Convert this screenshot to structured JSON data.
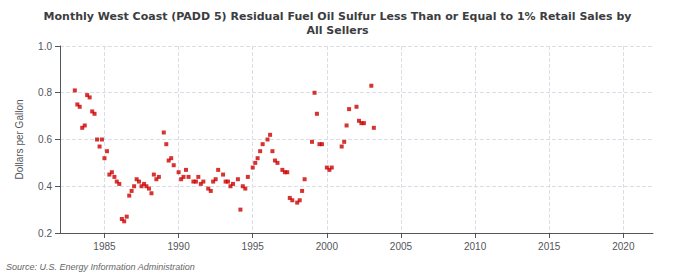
{
  "chart_data": {
    "type": "scatter",
    "title": "Monthly West Coast (PADD 5) Residual Fuel Oil Sulfur Less Than or Equal to 1% Retail Sales by\nAll Sellers",
    "ylabel": "Dollars per Gallon",
    "annotation": "Source: U.S. Energy Information Administration",
    "color": "#cc0000",
    "marker": "square",
    "grid": true,
    "xlim": [
      1982,
      2022
    ],
    "ylim": [
      0.2,
      1.0
    ],
    "xticks": [
      1985,
      1990,
      1995,
      2000,
      2005,
      2010,
      2015,
      2020
    ],
    "yticks": [
      0.2,
      0.4,
      0.6,
      0.8,
      {
        "value": 1.0,
        "label": "1.0"
      }
    ],
    "x": [
      1983.0,
      1983.17,
      1983.33,
      1983.5,
      1983.67,
      1983.83,
      1984.0,
      1984.17,
      1984.33,
      1984.5,
      1984.67,
      1984.83,
      1985.0,
      1985.17,
      1985.33,
      1985.5,
      1985.67,
      1985.83,
      1986.0,
      1986.17,
      1986.33,
      1986.5,
      1986.67,
      1986.83,
      1987.0,
      1987.17,
      1987.33,
      1987.5,
      1987.67,
      1987.83,
      1988.0,
      1988.17,
      1988.33,
      1988.5,
      1988.67,
      1989.0,
      1989.17,
      1989.33,
      1989.5,
      1989.67,
      1990.0,
      1990.17,
      1990.33,
      1990.5,
      1990.67,
      1991.0,
      1991.17,
      1991.33,
      1991.5,
      1991.67,
      1992.0,
      1992.17,
      1992.33,
      1992.5,
      1992.67,
      1993.0,
      1993.17,
      1993.33,
      1993.5,
      1993.67,
      1994.0,
      1994.17,
      1994.33,
      1994.5,
      1994.67,
      1995.0,
      1995.17,
      1995.33,
      1995.5,
      1995.67,
      1996.0,
      1996.17,
      1996.33,
      1996.5,
      1996.67,
      1997.0,
      1997.17,
      1997.33,
      1997.5,
      1997.67,
      1998.0,
      1998.17,
      1998.33,
      1998.5,
      1999.0,
      1999.17,
      1999.33,
      1999.5,
      1999.67,
      2000.0,
      2000.17,
      2000.33,
      2001.0,
      2001.17,
      2001.33,
      2001.5,
      2002.0,
      2002.17,
      2002.33,
      2002.5,
      2003.0,
      2003.17
    ],
    "values": [
      0.81,
      0.75,
      0.74,
      0.65,
      0.66,
      0.79,
      0.78,
      0.72,
      0.71,
      0.6,
      0.57,
      0.6,
      0.52,
      0.55,
      0.45,
      0.46,
      0.44,
      0.42,
      0.41,
      0.26,
      0.25,
      0.27,
      0.36,
      0.38,
      0.4,
      0.43,
      0.42,
      0.4,
      0.41,
      0.4,
      0.39,
      0.37,
      0.45,
      0.43,
      0.44,
      0.63,
      0.58,
      0.51,
      0.52,
      0.49,
      0.46,
      0.43,
      0.44,
      0.47,
      0.44,
      0.42,
      0.42,
      0.44,
      0.41,
      0.42,
      0.39,
      0.38,
      0.42,
      0.43,
      0.47,
      0.45,
      0.42,
      0.42,
      0.4,
      0.41,
      0.43,
      0.3,
      0.4,
      0.39,
      0.44,
      0.48,
      0.5,
      0.52,
      0.55,
      0.58,
      0.6,
      0.62,
      0.55,
      0.51,
      0.5,
      0.47,
      0.46,
      0.46,
      0.35,
      0.34,
      0.33,
      0.34,
      0.38,
      0.43,
      0.59,
      0.8,
      0.71,
      0.58,
      0.58,
      0.48,
      0.47,
      0.48,
      0.57,
      0.59,
      0.66,
      0.73,
      0.74,
      0.68,
      0.67,
      0.67,
      0.83,
      0.65
    ]
  }
}
